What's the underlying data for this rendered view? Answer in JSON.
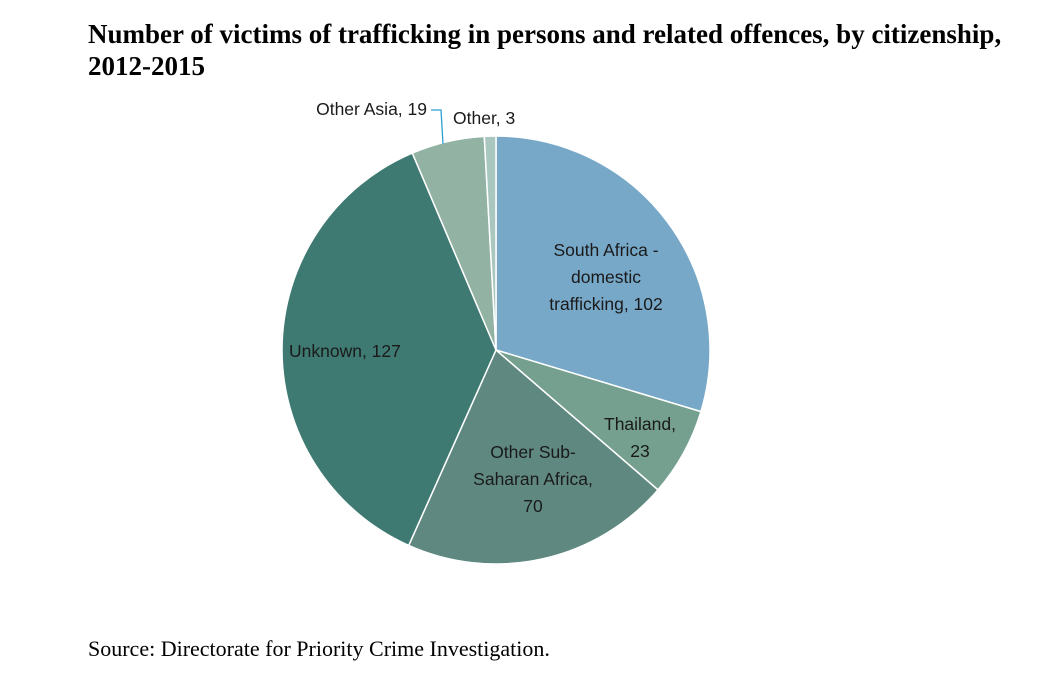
{
  "title": {
    "line1": "Number of victims of trafficking in persons and related offences, by citizenship,",
    "line2": "2012-2015"
  },
  "source": "Source: Directorate for Priority Crime Investigation.",
  "chart_data": {
    "type": "pie",
    "title": "Number of victims of trafficking in persons and related offences, by citizenship, 2012-2015",
    "start_angle_deg": 0,
    "direction": "clockwise",
    "slices": [
      {
        "name": "South Africa - domestic trafficking",
        "value": 102,
        "color": "#77a8c8",
        "label_lines": [
          "South Africa -",
          "domestic",
          "trafficking, 102"
        ]
      },
      {
        "name": "Thailand",
        "value": 23,
        "color": "#75a08f",
        "label_lines": [
          "Thailand,",
          "23"
        ]
      },
      {
        "name": "Other Sub-Saharan Africa",
        "value": 70,
        "color": "#5f8880",
        "label_lines": [
          "Other Sub-",
          "Saharan Africa,",
          "70"
        ]
      },
      {
        "name": "Unknown",
        "value": 127,
        "color": "#3f7a72",
        "label_lines": [
          "Unknown, 127"
        ]
      },
      {
        "name": "Other Asia",
        "value": 19,
        "color": "#92b3a4",
        "label_lines": [
          "Other Asia, 19"
        ]
      },
      {
        "name": "Other",
        "value": 3,
        "color": "#a9c7bf",
        "label_lines": [
          "Other, 3"
        ]
      }
    ],
    "leader_line_color": "#2e9fcf"
  }
}
